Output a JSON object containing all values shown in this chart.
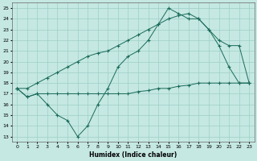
{
  "xlabel": "Humidex (Indice chaleur)",
  "bg_color": "#c5e8e2",
  "grid_color": "#9dcfc7",
  "line_color": "#1a6b5a",
  "xlim": [
    -0.5,
    23.5
  ],
  "ylim": [
    12.5,
    25.5
  ],
  "yticks": [
    13,
    14,
    15,
    16,
    17,
    18,
    19,
    20,
    21,
    22,
    23,
    24,
    25
  ],
  "xticks": [
    0,
    1,
    2,
    3,
    4,
    5,
    6,
    7,
    8,
    9,
    10,
    11,
    12,
    13,
    14,
    15,
    16,
    17,
    18,
    19,
    20,
    21,
    22,
    23
  ],
  "line1_x": [
    0,
    1,
    2,
    3,
    4,
    5,
    6,
    7,
    8,
    9,
    10,
    11,
    12,
    13,
    14,
    15,
    16,
    17,
    18,
    19,
    20,
    21,
    22,
    23
  ],
  "line1_y": [
    17.5,
    16.7,
    17.0,
    17.0,
    17.0,
    17.0,
    17.0,
    17.0,
    17.0,
    17.0,
    17.0,
    17.0,
    17.2,
    17.3,
    17.5,
    17.5,
    17.7,
    17.8,
    18.0,
    18.0,
    18.0,
    18.0,
    18.0,
    18.0
  ],
  "line2_x": [
    0,
    1,
    2,
    3,
    4,
    5,
    6,
    7,
    8,
    9,
    10,
    11,
    12,
    13,
    14,
    15,
    16,
    17,
    18,
    19,
    20,
    21,
    22,
    23
  ],
  "line2_y": [
    17.5,
    16.7,
    17.0,
    16.0,
    15.0,
    14.5,
    13.0,
    14.0,
    16.0,
    17.5,
    19.5,
    20.5,
    21.0,
    22.0,
    23.5,
    25.0,
    24.5,
    24.0,
    24.0,
    23.0,
    21.5,
    19.5,
    18.0,
    18.0
  ],
  "line3_x": [
    0,
    1,
    2,
    3,
    4,
    5,
    6,
    7,
    8,
    9,
    10,
    11,
    12,
    13,
    14,
    15,
    16,
    17,
    18,
    19,
    20,
    21,
    22,
    23
  ],
  "line3_y": [
    17.5,
    17.5,
    18.0,
    18.5,
    19.0,
    19.5,
    20.0,
    20.5,
    20.8,
    21.0,
    21.5,
    22.0,
    22.5,
    23.0,
    23.5,
    24.0,
    24.3,
    24.5,
    24.0,
    23.0,
    22.0,
    21.5,
    21.5,
    18.0
  ]
}
